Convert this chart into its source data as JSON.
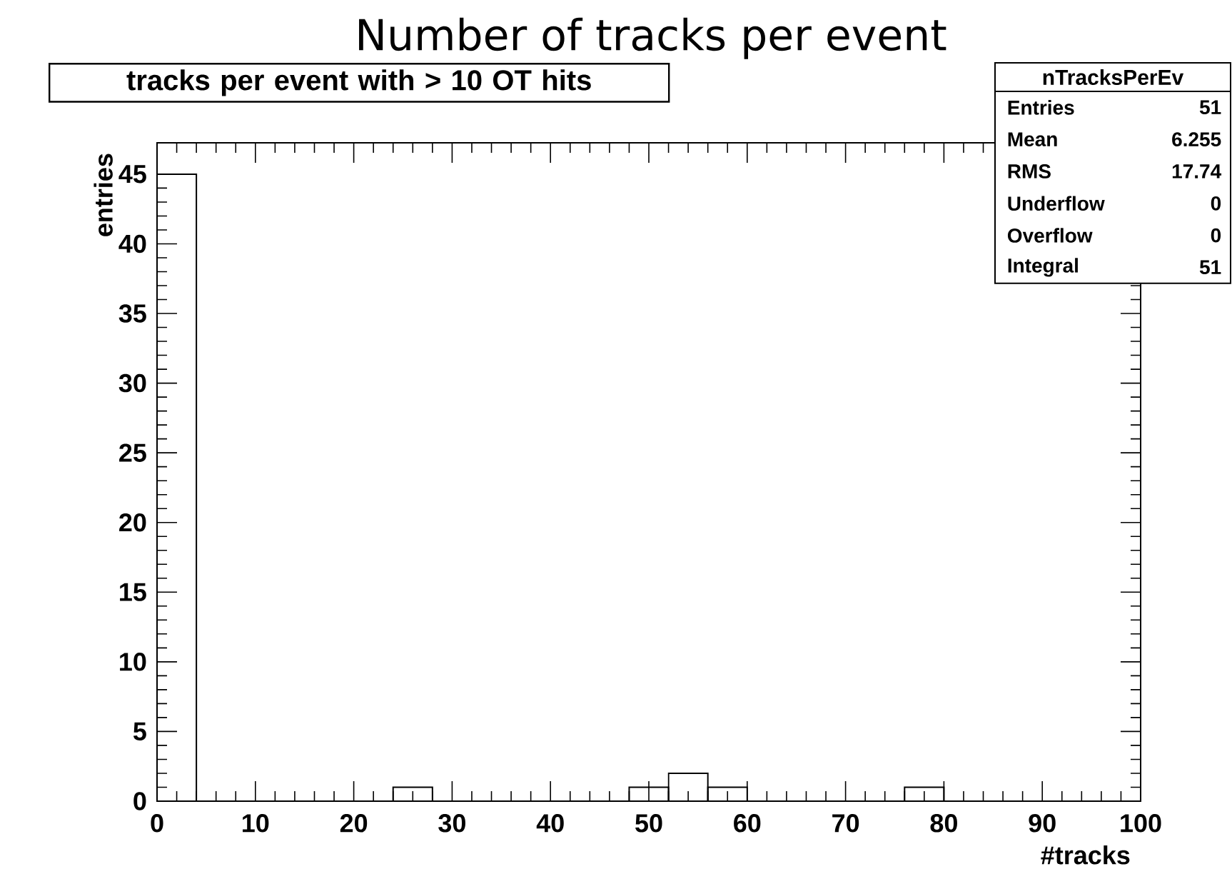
{
  "chart_data": {
    "type": "histogram",
    "title": "Number of tracks per event",
    "subtitle": "tracks per event with > 10 OT hits",
    "xlabel": "#tracks",
    "ylabel": "entries",
    "bins": [
      0,
      4,
      8,
      12,
      16,
      20,
      24,
      28,
      32,
      36,
      40,
      44,
      48,
      52,
      56,
      60,
      64,
      68,
      72,
      76,
      80,
      84,
      88,
      92,
      96,
      100
    ],
    "values": [
      45,
      0,
      0,
      0,
      0,
      0,
      1,
      0,
      0,
      0,
      0,
      0,
      1,
      2,
      1,
      0,
      0,
      0,
      0,
      1,
      0,
      0,
      0,
      0,
      0
    ],
    "color": "#000000",
    "xlim": [
      0,
      100
    ],
    "ylim": [
      0,
      47.25
    ],
    "xticks": [
      0,
      10,
      20,
      30,
      40,
      50,
      60,
      70,
      80,
      90,
      100
    ],
    "yticks": [
      0,
      5,
      10,
      15,
      20,
      25,
      30,
      35,
      40,
      45
    ],
    "annotations": [
      "nTracksPerEv",
      "Entries",
      "51",
      "Mean",
      "6.255",
      "RMS",
      "17.74",
      "Underflow",
      "0",
      "Overflow",
      "0",
      "Integral",
      "51"
    ]
  }
}
